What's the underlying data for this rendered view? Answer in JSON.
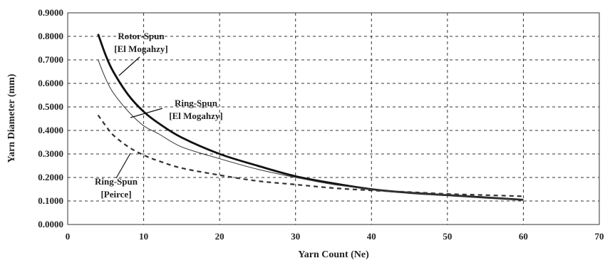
{
  "chart_data": {
    "type": "line",
    "xlabel": "Yarn Count (Ne)",
    "ylabel": "Yarn Diameter (mm)",
    "xlim": [
      0,
      70
    ],
    "ylim": [
      0,
      0.9
    ],
    "xticks": [
      "0",
      "10",
      "20",
      "30",
      "40",
      "50",
      "60",
      "70"
    ],
    "yticks": [
      "0.0000",
      "0.1000",
      "0.2000",
      "0.3000",
      "0.4000",
      "0.5000",
      "0.6000",
      "0.7000",
      "0.8000",
      "0.9000"
    ],
    "grid": true,
    "series": [
      {
        "name": "Rotor-Spun [El Mogahzy]",
        "style": "thick-solid",
        "color": "#111111",
        "x": [
          4,
          5,
          6,
          8,
          10,
          12,
          15,
          20,
          25,
          30,
          35,
          40,
          45,
          50,
          55,
          60
        ],
        "y": [
          0.81,
          0.72,
          0.65,
          0.55,
          0.48,
          0.43,
          0.37,
          0.3,
          0.25,
          0.205,
          0.175,
          0.15,
          0.135,
          0.125,
          0.115,
          0.105
        ]
      },
      {
        "name": "Ring-Spun [El Mogahzy]",
        "style": "thin-solid",
        "color": "#444444",
        "x": [
          4,
          5,
          6,
          8,
          10,
          12,
          15,
          20,
          25,
          30,
          35,
          40,
          45,
          50,
          55,
          60
        ],
        "y": [
          0.7,
          0.62,
          0.56,
          0.48,
          0.42,
          0.385,
          0.33,
          0.28,
          0.235,
          0.2,
          0.17,
          0.15,
          0.135,
          0.125,
          0.115,
          0.105
        ]
      },
      {
        "name": "Ring-Spun [Peirce]",
        "style": "dashed",
        "color": "#333333",
        "x": [
          4,
          5,
          6,
          8,
          10,
          12,
          15,
          20,
          25,
          30,
          35,
          40,
          45,
          50,
          55,
          60
        ],
        "y": [
          0.465,
          0.42,
          0.38,
          0.33,
          0.295,
          0.27,
          0.24,
          0.21,
          0.185,
          0.17,
          0.155,
          0.145,
          0.138,
          0.13,
          0.125,
          0.12
        ]
      }
    ],
    "annotations": [
      {
        "line1": "Rotor-Spun",
        "line2": "[El Mogahzy]"
      },
      {
        "line1": "Ring-Spun",
        "line2": "[El Mogahzy]"
      },
      {
        "line1": "Ring-Spun",
        "line2": "[Peirce]"
      }
    ]
  }
}
